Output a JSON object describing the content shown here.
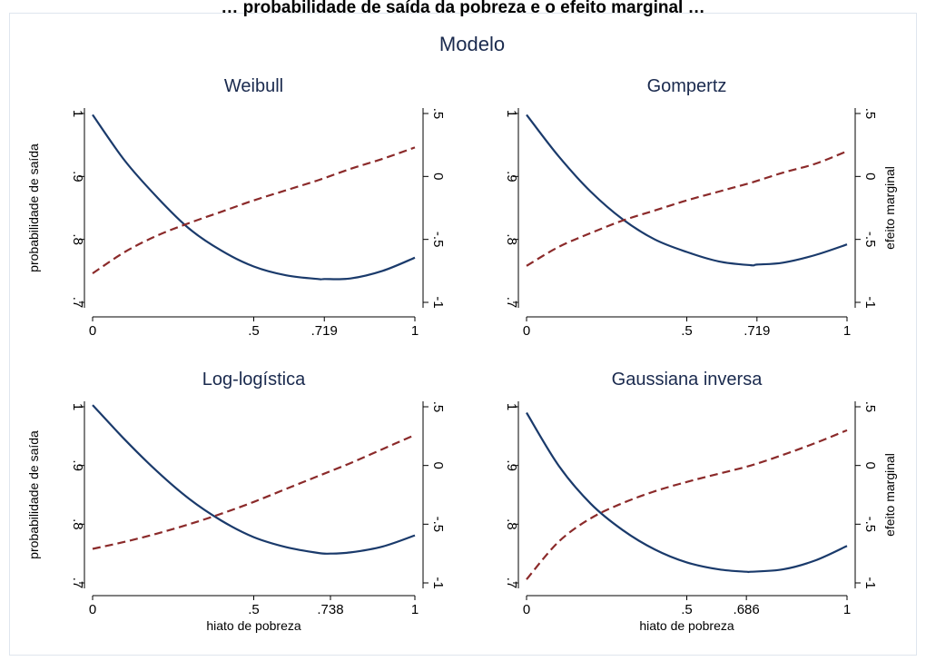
{
  "page_title": "… probabilidade de saída da pobreza e o efeito marginal …",
  "figure_title": "Modelo",
  "colors": {
    "prob_line": "#1a3a6b",
    "marg_line": "#8b2a2a",
    "axis": "#000000",
    "frame": "#dfe6ee"
  },
  "chart_data": [
    {
      "type": "line",
      "title": "Weibull",
      "xlabel": "",
      "ylabel_left": "probabilidade de saída",
      "ylabel_right": "",
      "xticks": [
        0,
        0.5,
        0.719,
        1
      ],
      "xtick_labels": [
        "0",
        ".5",
        ".719",
        "1"
      ],
      "yticks_left": [
        0.7,
        0.8,
        0.9,
        1
      ],
      "yticks_left_labels": [
        ".7",
        ".8",
        ".9",
        "1"
      ],
      "yticks_right": [
        -1,
        -0.5,
        0,
        0.5
      ],
      "yticks_right_labels": [
        "-1",
        "-.5",
        "0",
        ".5"
      ],
      "xlim": [
        0,
        1
      ],
      "ylim_left": [
        0.7,
        1
      ],
      "ylim_right": [
        -1,
        0.5
      ],
      "series": [
        {
          "axis": "left",
          "style": "solid",
          "x": [
            0,
            0.1,
            0.2,
            0.3,
            0.4,
            0.5,
            0.6,
            0.7,
            0.719,
            0.8,
            0.9,
            1
          ],
          "y": [
            0.998,
            0.925,
            0.867,
            0.817,
            0.782,
            0.757,
            0.743,
            0.737,
            0.737,
            0.738,
            0.75,
            0.771
          ]
        },
        {
          "axis": "right",
          "style": "dashed",
          "x": [
            0,
            0.1,
            0.2,
            0.3,
            0.4,
            0.5,
            0.6,
            0.7,
            0.8,
            0.9,
            1
          ],
          "y": [
            -0.77,
            -0.6,
            -0.47,
            -0.37,
            -0.28,
            -0.19,
            -0.11,
            -0.03,
            0.06,
            0.14,
            0.23
          ]
        }
      ]
    },
    {
      "type": "line",
      "title": "Gompertz",
      "xlabel": "",
      "ylabel_left": "",
      "ylabel_right": "efeito marginal",
      "xticks": [
        0,
        0.5,
        0.719,
        1
      ],
      "xtick_labels": [
        "0",
        ".5",
        ".719",
        "1"
      ],
      "yticks_left": [
        0.7,
        0.8,
        0.9,
        1
      ],
      "yticks_left_labels": [
        ".7",
        ".8",
        ".9",
        "1"
      ],
      "yticks_right": [
        -1,
        -0.5,
        0,
        0.5
      ],
      "yticks_right_labels": [
        "-1",
        "-.5",
        "0",
        ".5"
      ],
      "xlim": [
        0,
        1
      ],
      "ylim_left": [
        0.7,
        1
      ],
      "ylim_right": [
        -1,
        0.5
      ],
      "series": [
        {
          "axis": "left",
          "style": "solid",
          "x": [
            0,
            0.1,
            0.2,
            0.3,
            0.4,
            0.5,
            0.6,
            0.7,
            0.719,
            0.8,
            0.9,
            1
          ],
          "y": [
            0.998,
            0.932,
            0.876,
            0.832,
            0.8,
            0.78,
            0.765,
            0.759,
            0.76,
            0.763,
            0.775,
            0.792
          ]
        },
        {
          "axis": "right",
          "style": "dashed",
          "x": [
            0,
            0.1,
            0.2,
            0.3,
            0.4,
            0.5,
            0.6,
            0.7,
            0.8,
            0.9,
            1
          ],
          "y": [
            -0.71,
            -0.56,
            -0.45,
            -0.35,
            -0.27,
            -0.19,
            -0.12,
            -0.05,
            0.03,
            0.1,
            0.2
          ]
        }
      ]
    },
    {
      "type": "line",
      "title": "Log-logística",
      "xlabel": "hiato de pobreza",
      "ylabel_left": "probabilidade de saída",
      "ylabel_right": "",
      "xticks": [
        0,
        0.5,
        0.738,
        1
      ],
      "xtick_labels": [
        "0",
        ".5",
        ".738",
        "1"
      ],
      "yticks_left": [
        0.7,
        0.8,
        0.9,
        1
      ],
      "yticks_left_labels": [
        ".7",
        ".8",
        ".9",
        "1"
      ],
      "yticks_right": [
        -1,
        -0.5,
        0,
        0.5
      ],
      "yticks_right_labels": [
        "-1",
        "-.5",
        "0",
        ".5"
      ],
      "xlim": [
        0,
        1
      ],
      "ylim_left": [
        0.7,
        1
      ],
      "ylim_right": [
        -1,
        0.5
      ],
      "series": [
        {
          "axis": "left",
          "style": "solid",
          "x": [
            0,
            0.1,
            0.2,
            0.3,
            0.4,
            0.5,
            0.6,
            0.7,
            0.738,
            0.8,
            0.9,
            1
          ],
          "y": [
            1.003,
            0.944,
            0.89,
            0.843,
            0.806,
            0.778,
            0.761,
            0.751,
            0.75,
            0.752,
            0.762,
            0.781
          ]
        },
        {
          "axis": "right",
          "style": "dashed",
          "x": [
            0,
            0.1,
            0.2,
            0.3,
            0.4,
            0.5,
            0.6,
            0.7,
            0.8,
            0.9,
            1
          ],
          "y": [
            -0.71,
            -0.65,
            -0.58,
            -0.5,
            -0.41,
            -0.31,
            -0.2,
            -0.09,
            0.02,
            0.14,
            0.26
          ]
        }
      ]
    },
    {
      "type": "line",
      "title": "Gaussiana inversa",
      "xlabel": "hiato de pobreza",
      "ylabel_left": "",
      "ylabel_right": "efeito marginal",
      "xticks": [
        0,
        0.5,
        0.686,
        1
      ],
      "xtick_labels": [
        "0",
        ".5",
        ".686",
        "1"
      ],
      "yticks_left": [
        0.7,
        0.8,
        0.9,
        1
      ],
      "yticks_left_labels": [
        ".7",
        ".8",
        ".9",
        "1"
      ],
      "yticks_right": [
        -1,
        -0.5,
        0,
        0.5
      ],
      "yticks_right_labels": [
        "-1",
        "-.5",
        "0",
        ".5"
      ],
      "xlim": [
        0,
        1
      ],
      "ylim_left": [
        0.7,
        1
      ],
      "ylim_right": [
        -1,
        0.5
      ],
      "series": [
        {
          "axis": "left",
          "style": "solid",
          "x": [
            0,
            0.1,
            0.2,
            0.3,
            0.4,
            0.5,
            0.6,
            0.686,
            0.7,
            0.8,
            0.9,
            1
          ],
          "y": [
            0.99,
            0.9,
            0.835,
            0.79,
            0.757,
            0.735,
            0.723,
            0.719,
            0.719,
            0.723,
            0.738,
            0.763
          ]
        },
        {
          "axis": "right",
          "style": "dashed",
          "x": [
            0,
            0.1,
            0.2,
            0.3,
            0.4,
            0.5,
            0.6,
            0.7,
            0.8,
            0.9,
            1
          ],
          "y": [
            -0.97,
            -0.65,
            -0.45,
            -0.32,
            -0.22,
            -0.14,
            -0.07,
            0.0,
            0.09,
            0.19,
            0.3
          ]
        }
      ]
    }
  ]
}
